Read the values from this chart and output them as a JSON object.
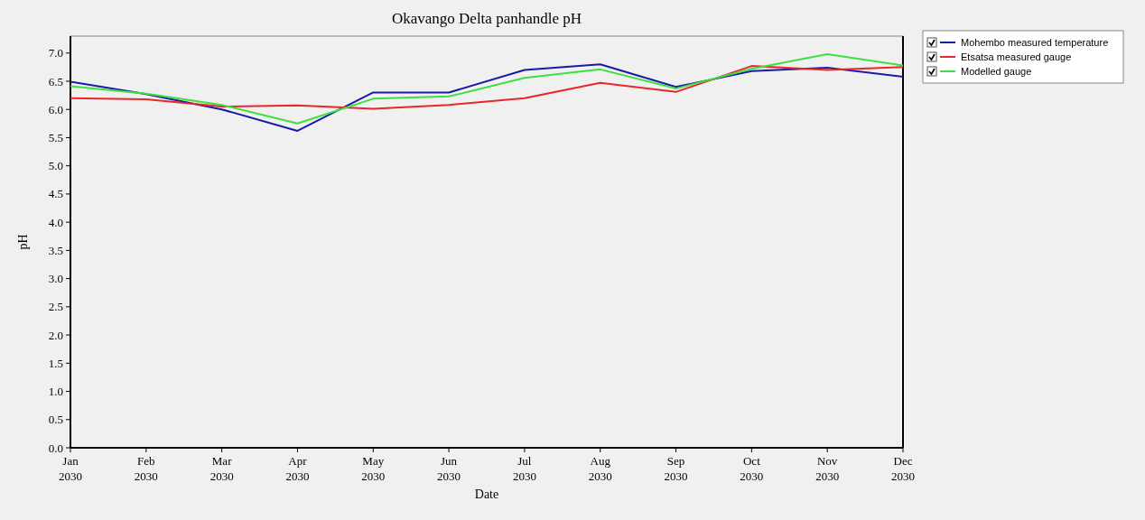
{
  "chart_data": {
    "type": "line",
    "title": "Okavango Delta panhandle pH",
    "xlabel": "Date",
    "ylabel": "pH",
    "categories": [
      "Jan 2030",
      "Feb 2030",
      "Mar 2030",
      "Apr 2030",
      "May 2030",
      "Jun 2030",
      "Jul 2030",
      "Aug 2030",
      "Sep 2030",
      "Oct 2030",
      "Nov 2030",
      "Dec 2030"
    ],
    "series": [
      {
        "name": "Mohembo measured temperature",
        "color": "#1a1aa6",
        "values": [
          6.49,
          6.27,
          6.0,
          5.62,
          6.3,
          6.3,
          6.7,
          6.8,
          6.4,
          6.68,
          6.74,
          6.58
        ]
      },
      {
        "name": "Etsatsa measured gauge",
        "color": "#e8262b",
        "values": [
          6.2,
          6.18,
          6.05,
          6.07,
          6.01,
          6.08,
          6.2,
          6.47,
          6.31,
          6.77,
          6.7,
          6.75
        ]
      },
      {
        "name": "Modelled gauge",
        "color": "#3de03d",
        "values": [
          6.41,
          6.28,
          6.08,
          5.75,
          6.19,
          6.23,
          6.56,
          6.71,
          6.37,
          6.72,
          6.98,
          6.78
        ]
      }
    ],
    "ylim": [
      0,
      7.3
    ],
    "yticks": [
      {
        "value": 0,
        "label": "0.0"
      },
      0.5,
      {
        "value": 1,
        "label": "1.0"
      },
      1.5,
      {
        "value": 2,
        "label": "2.0"
      },
      2.5,
      {
        "value": 3,
        "label": "3.0"
      },
      3.5,
      {
        "value": 4,
        "label": "4.0"
      },
      4.5,
      {
        "value": 5,
        "label": "5.0"
      },
      5.5,
      {
        "value": 6,
        "label": "6.0"
      },
      6.5,
      {
        "value": 7,
        "label": "7.0"
      }
    ],
    "legend": "top right",
    "grid": false,
    "marker": "none",
    "line_style": "solid"
  }
}
